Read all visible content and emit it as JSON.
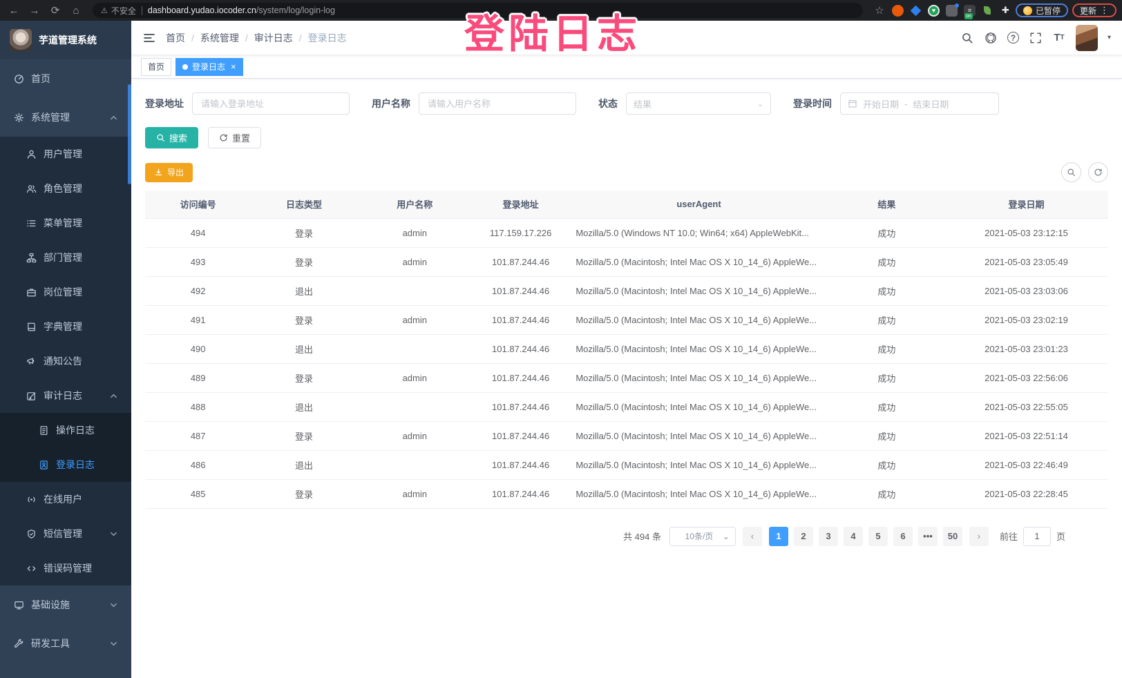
{
  "browser": {
    "security": "不安全",
    "url_host": "dashboard.yudao.iocoder.cn",
    "url_path": "/system/log/login-log",
    "paused_badge": "已暂停",
    "update_button": "更新",
    "extension_on_badge": "on"
  },
  "watermark": "登陆日志",
  "colors": {
    "primary": "#409eff",
    "search_button": "#26b3a6",
    "export_button": "#f2a41c",
    "sidebar_bg": "#304156",
    "watermark": "#fa4b7c"
  },
  "sidebar": {
    "title": "芋道管理系统",
    "items": [
      {
        "id": "home",
        "label": "首页",
        "icon": "i-dashboard",
        "level": 0
      },
      {
        "id": "system",
        "label": "系统管理",
        "icon": "i-gear",
        "level": 0,
        "expand": "up"
      },
      {
        "id": "user-mgmt",
        "label": "用户管理",
        "icon": "i-user",
        "level": 1
      },
      {
        "id": "role-mgmt",
        "label": "角色管理",
        "icon": "i-users",
        "level": 1
      },
      {
        "id": "menu-mgmt",
        "label": "菜单管理",
        "icon": "i-list",
        "level": 1
      },
      {
        "id": "dept-mgmt",
        "label": "部门管理",
        "icon": "i-tree",
        "level": 1
      },
      {
        "id": "post-mgmt",
        "label": "岗位管理",
        "icon": "i-briefcase",
        "level": 1
      },
      {
        "id": "dict-mgmt",
        "label": "字典管理",
        "icon": "i-book",
        "level": 1
      },
      {
        "id": "notice",
        "label": "通知公告",
        "icon": "i-megaphone",
        "level": 1
      },
      {
        "id": "audit-log",
        "label": "审计日志",
        "icon": "i-edit",
        "level": 1,
        "expand": "up"
      },
      {
        "id": "operate-log",
        "label": "操作日志",
        "icon": "i-doc",
        "level": 2
      },
      {
        "id": "login-log",
        "label": "登录日志",
        "icon": "i-login",
        "level": 2,
        "active": true
      },
      {
        "id": "online-users",
        "label": "在线用户",
        "icon": "i-online",
        "level": 1
      },
      {
        "id": "sms-mgmt",
        "label": "短信管理",
        "icon": "i-shield",
        "level": 1,
        "expand": "down"
      },
      {
        "id": "error-code",
        "label": "错误码管理",
        "icon": "i-code",
        "level": 1
      },
      {
        "id": "infra",
        "label": "基础设施",
        "icon": "i-infra",
        "level": 0,
        "expand": "down"
      },
      {
        "id": "dev-tools",
        "label": "研发工具",
        "icon": "i-tools",
        "level": 0,
        "expand": "down"
      }
    ]
  },
  "header": {
    "breadcrumb": [
      "首页",
      "系统管理",
      "审计日志",
      "登录日志"
    ]
  },
  "tags": [
    {
      "id": "home",
      "label": "首页",
      "active": false
    },
    {
      "id": "login-log",
      "label": "登录日志",
      "active": true
    }
  ],
  "filters": {
    "address": {
      "label": "登录地址",
      "placeholder": "请输入登录地址"
    },
    "username": {
      "label": "用户名称",
      "placeholder": "请输入用户名称"
    },
    "status": {
      "label": "状态",
      "placeholder": "结果"
    },
    "time": {
      "label": "登录时间",
      "start_placeholder": "开始日期",
      "separator": "-",
      "end_placeholder": "结束日期"
    },
    "search_label": "搜索",
    "reset_label": "重置"
  },
  "toolbar": {
    "export_label": "导出"
  },
  "table": {
    "columns": [
      {
        "id": "id",
        "label": "访问编号"
      },
      {
        "id": "type",
        "label": "日志类型"
      },
      {
        "id": "user",
        "label": "用户名称"
      },
      {
        "id": "ip",
        "label": "登录地址"
      },
      {
        "id": "ua",
        "label": "userAgent"
      },
      {
        "id": "result",
        "label": "结果"
      },
      {
        "id": "date",
        "label": "登录日期"
      }
    ],
    "rows": [
      {
        "id": "494",
        "type": "登录",
        "user": "admin",
        "ip": "117.159.17.226",
        "ua": "Mozilla/5.0 (Windows NT 10.0; Win64; x64) AppleWebKit...",
        "result": "成功",
        "date": "2021-05-03 23:12:15"
      },
      {
        "id": "493",
        "type": "登录",
        "user": "admin",
        "ip": "101.87.244.46",
        "ua": "Mozilla/5.0 (Macintosh; Intel Mac OS X 10_14_6) AppleWe...",
        "result": "成功",
        "date": "2021-05-03 23:05:49"
      },
      {
        "id": "492",
        "type": "退出",
        "user": "",
        "ip": "101.87.244.46",
        "ua": "Mozilla/5.0 (Macintosh; Intel Mac OS X 10_14_6) AppleWe...",
        "result": "成功",
        "date": "2021-05-03 23:03:06"
      },
      {
        "id": "491",
        "type": "登录",
        "user": "admin",
        "ip": "101.87.244.46",
        "ua": "Mozilla/5.0 (Macintosh; Intel Mac OS X 10_14_6) AppleWe...",
        "result": "成功",
        "date": "2021-05-03 23:02:19"
      },
      {
        "id": "490",
        "type": "退出",
        "user": "",
        "ip": "101.87.244.46",
        "ua": "Mozilla/5.0 (Macintosh; Intel Mac OS X 10_14_6) AppleWe...",
        "result": "成功",
        "date": "2021-05-03 23:01:23"
      },
      {
        "id": "489",
        "type": "登录",
        "user": "admin",
        "ip": "101.87.244.46",
        "ua": "Mozilla/5.0 (Macintosh; Intel Mac OS X 10_14_6) AppleWe...",
        "result": "成功",
        "date": "2021-05-03 22:56:06"
      },
      {
        "id": "488",
        "type": "退出",
        "user": "",
        "ip": "101.87.244.46",
        "ua": "Mozilla/5.0 (Macintosh; Intel Mac OS X 10_14_6) AppleWe...",
        "result": "成功",
        "date": "2021-05-03 22:55:05"
      },
      {
        "id": "487",
        "type": "登录",
        "user": "admin",
        "ip": "101.87.244.46",
        "ua": "Mozilla/5.0 (Macintosh; Intel Mac OS X 10_14_6) AppleWe...",
        "result": "成功",
        "date": "2021-05-03 22:51:14"
      },
      {
        "id": "486",
        "type": "退出",
        "user": "",
        "ip": "101.87.244.46",
        "ua": "Mozilla/5.0 (Macintosh; Intel Mac OS X 10_14_6) AppleWe...",
        "result": "成功",
        "date": "2021-05-03 22:46:49"
      },
      {
        "id": "485",
        "type": "登录",
        "user": "admin",
        "ip": "101.87.244.46",
        "ua": "Mozilla/5.0 (Macintosh; Intel Mac OS X 10_14_6) AppleWe...",
        "result": "成功",
        "date": "2021-05-03 22:28:45"
      }
    ]
  },
  "pagination": {
    "total_label": "共 494 条",
    "page_size_label": "10条/页",
    "prev": "‹",
    "next": "›",
    "pages": [
      "1",
      "2",
      "3",
      "4",
      "5",
      "6",
      "•••",
      "50"
    ],
    "active_page": "1",
    "goto_prefix": "前往",
    "goto_value": "1",
    "goto_suffix": "页"
  }
}
